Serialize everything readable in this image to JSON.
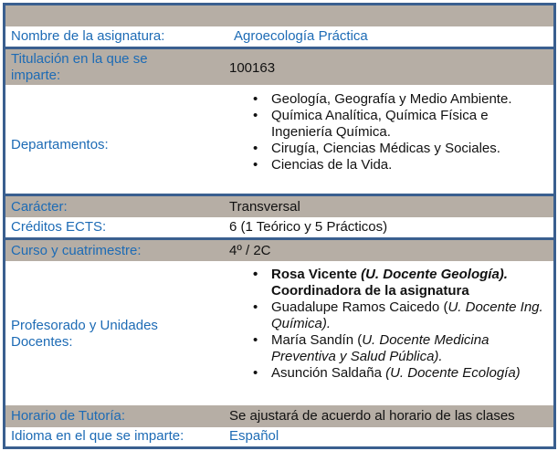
{
  "rows": {
    "nombre": {
      "label": "Nombre de la asignatura:",
      "value": "Agroecología Práctica"
    },
    "titulacion": {
      "label": "Titulación en la que se imparte:",
      "value": "100163"
    },
    "departamentos": {
      "label": "Departamentos:",
      "items": [
        "Geología, Geografía y Medio Ambiente.",
        "Química Analítica, Química Física e Ingeniería Química.",
        "Cirugía, Ciencias Médicas y Sociales.",
        "Ciencias de la Vida."
      ]
    },
    "caracter": {
      "label": "Carácter:",
      "value": "Transversal"
    },
    "creditos": {
      "label": "Créditos ECTS:",
      "value": "6 (1 Teórico y 5 Prácticos)"
    },
    "curso": {
      "label": "Curso y cuatrimestre:",
      "value": "4º / 2C"
    },
    "profesorado": {
      "label": "Profesorado y Unidades Docentes:",
      "items": [
        {
          "name": "Rosa Vicente ",
          "unit": "(U. Docente  Geología).",
          "note": " Coordinadora de la asignatura"
        },
        {
          "name": "Guadalupe Ramos Caicedo (",
          "unit": "U. Docente Ing. Química).",
          "note": ""
        },
        {
          "name": "María Sandín (",
          "unit": "U. Docente Medicina Preventiva y Salud Pública).",
          "note": ""
        },
        {
          "name": "Asunción Saldaña ",
          "unit": "(U. Docente  Ecología)",
          "note": ""
        }
      ]
    },
    "horario": {
      "label": "Horario de Tutoría:",
      "value": "Se ajustará de acuerdo al  horario de las clases"
    },
    "idioma": {
      "label": "Idioma en el que se imparte:",
      "value": "Español"
    }
  },
  "colors": {
    "border": "#3a5f8f",
    "band": "#b6aea5",
    "label": "#1d6bb5"
  }
}
